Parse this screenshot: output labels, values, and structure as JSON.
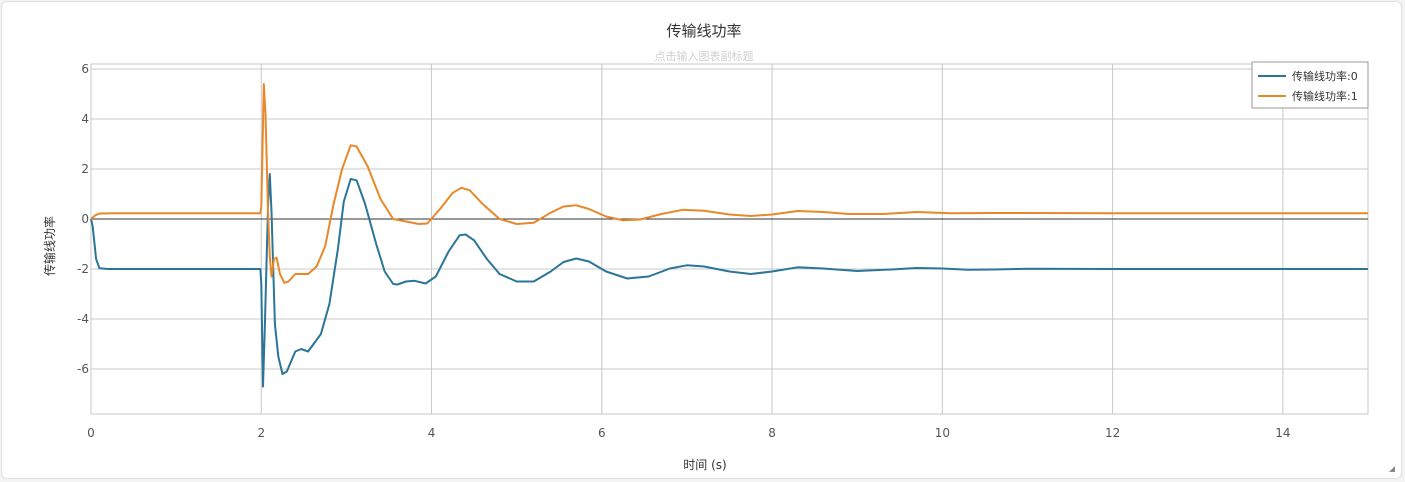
{
  "chart_data": {
    "type": "line",
    "title": "传输线功率",
    "subtitle": "点击输入图表副标题",
    "xlabel": "时间 (s)",
    "ylabel": "传输线功率",
    "xlim": [
      0,
      15
    ],
    "ylim": [
      -7.8,
      6.2
    ],
    "xticks": [
      0,
      2,
      4,
      6,
      8,
      10,
      12,
      14
    ],
    "yticks": [
      -6,
      -4,
      -2,
      0,
      2,
      4,
      6
    ],
    "grid": true,
    "zero_line": true,
    "legend_position": "top-right",
    "series": [
      {
        "name": "传输线功率:0",
        "color": "#2a7598",
        "points": [
          [
            0,
            0
          ],
          [
            0.02,
            -0.3
          ],
          [
            0.06,
            -1.6
          ],
          [
            0.1,
            -1.97
          ],
          [
            0.2,
            -2.0
          ],
          [
            1.99,
            -2.0
          ],
          [
            2.0,
            -2.6
          ],
          [
            2.02,
            -6.7
          ],
          [
            2.04,
            -4.5
          ],
          [
            2.08,
            0.6
          ],
          [
            2.1,
            1.8
          ],
          [
            2.12,
            0.3
          ],
          [
            2.16,
            -4.2
          ],
          [
            2.2,
            -5.5
          ],
          [
            2.25,
            -6.2
          ],
          [
            2.3,
            -6.1
          ],
          [
            2.4,
            -5.3
          ],
          [
            2.47,
            -5.2
          ],
          [
            2.55,
            -5.3
          ],
          [
            2.7,
            -4.6
          ],
          [
            2.8,
            -3.4
          ],
          [
            2.9,
            -1.2
          ],
          [
            2.97,
            0.7
          ],
          [
            3.05,
            1.6
          ],
          [
            3.12,
            1.55
          ],
          [
            3.22,
            0.6
          ],
          [
            3.35,
            -1.0
          ],
          [
            3.45,
            -2.1
          ],
          [
            3.55,
            -2.6
          ],
          [
            3.6,
            -2.62
          ],
          [
            3.7,
            -2.5
          ],
          [
            3.8,
            -2.47
          ],
          [
            3.93,
            -2.58
          ],
          [
            4.05,
            -2.3
          ],
          [
            4.2,
            -1.3
          ],
          [
            4.33,
            -0.65
          ],
          [
            4.4,
            -0.62
          ],
          [
            4.5,
            -0.85
          ],
          [
            4.65,
            -1.6
          ],
          [
            4.8,
            -2.2
          ],
          [
            5.0,
            -2.5
          ],
          [
            5.2,
            -2.5
          ],
          [
            5.4,
            -2.1
          ],
          [
            5.55,
            -1.72
          ],
          [
            5.7,
            -1.58
          ],
          [
            5.85,
            -1.7
          ],
          [
            6.05,
            -2.1
          ],
          [
            6.3,
            -2.38
          ],
          [
            6.55,
            -2.3
          ],
          [
            6.8,
            -1.98
          ],
          [
            7.0,
            -1.85
          ],
          [
            7.2,
            -1.9
          ],
          [
            7.5,
            -2.1
          ],
          [
            7.75,
            -2.2
          ],
          [
            8.0,
            -2.1
          ],
          [
            8.3,
            -1.93
          ],
          [
            8.6,
            -1.98
          ],
          [
            9.0,
            -2.08
          ],
          [
            9.4,
            -2.02
          ],
          [
            9.7,
            -1.96
          ],
          [
            10.0,
            -1.98
          ],
          [
            10.3,
            -2.03
          ],
          [
            10.6,
            -2.02
          ],
          [
            11.0,
            -1.99
          ],
          [
            12.0,
            -2.0
          ],
          [
            15.0,
            -2.0
          ]
        ]
      },
      {
        "name": "传输线功率:1",
        "color": "#e8882a",
        "points": [
          [
            0,
            0
          ],
          [
            0.05,
            0.15
          ],
          [
            0.1,
            0.22
          ],
          [
            0.3,
            0.23
          ],
          [
            1.99,
            0.23
          ],
          [
            2.0,
            0.5
          ],
          [
            2.03,
            5.4
          ],
          [
            2.05,
            4.2
          ],
          [
            2.08,
            0.2
          ],
          [
            2.1,
            -1.5
          ],
          [
            2.12,
            -2.3
          ],
          [
            2.15,
            -1.6
          ],
          [
            2.18,
            -1.55
          ],
          [
            2.22,
            -2.2
          ],
          [
            2.27,
            -2.55
          ],
          [
            2.32,
            -2.5
          ],
          [
            2.4,
            -2.2
          ],
          [
            2.55,
            -2.2
          ],
          [
            2.65,
            -1.9
          ],
          [
            2.75,
            -1.1
          ],
          [
            2.85,
            0.6
          ],
          [
            2.95,
            2.0
          ],
          [
            3.05,
            2.95
          ],
          [
            3.12,
            2.9
          ],
          [
            3.25,
            2.1
          ],
          [
            3.4,
            0.8
          ],
          [
            3.55,
            0.0
          ],
          [
            3.7,
            -0.1
          ],
          [
            3.85,
            -0.2
          ],
          [
            3.95,
            -0.18
          ],
          [
            4.1,
            0.4
          ],
          [
            4.25,
            1.05
          ],
          [
            4.35,
            1.25
          ],
          [
            4.45,
            1.15
          ],
          [
            4.6,
            0.6
          ],
          [
            4.8,
            0.0
          ],
          [
            5.0,
            -0.2
          ],
          [
            5.2,
            -0.15
          ],
          [
            5.4,
            0.25
          ],
          [
            5.55,
            0.5
          ],
          [
            5.7,
            0.55
          ],
          [
            5.85,
            0.4
          ],
          [
            6.05,
            0.1
          ],
          [
            6.25,
            -0.05
          ],
          [
            6.45,
            -0.02
          ],
          [
            6.7,
            0.2
          ],
          [
            6.95,
            0.37
          ],
          [
            7.2,
            0.33
          ],
          [
            7.5,
            0.18
          ],
          [
            7.75,
            0.12
          ],
          [
            8.0,
            0.18
          ],
          [
            8.3,
            0.32
          ],
          [
            8.6,
            0.28
          ],
          [
            8.9,
            0.2
          ],
          [
            9.3,
            0.2
          ],
          [
            9.7,
            0.28
          ],
          [
            10.1,
            0.23
          ],
          [
            10.6,
            0.24
          ],
          [
            11.0,
            0.24
          ],
          [
            12.0,
            0.23
          ],
          [
            15.0,
            0.23
          ]
        ]
      }
    ]
  }
}
